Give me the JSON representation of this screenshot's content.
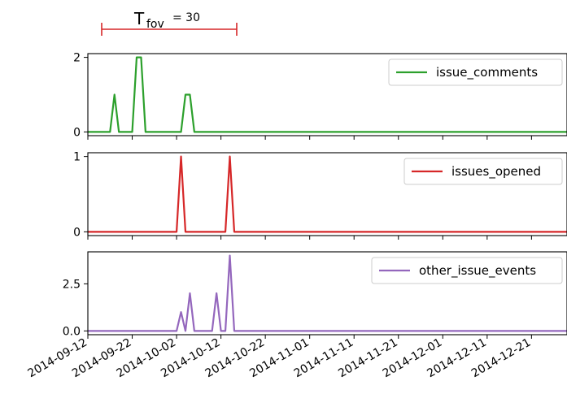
{
  "chart_data": {
    "type": "line",
    "fov_annotation": {
      "symbol": "T",
      "subscript": "fov",
      "value_text": "= 30",
      "color": "#d62728"
    },
    "x_dates": [
      "2014-09-12",
      "2014-09-13",
      "2014-09-14",
      "2014-09-15",
      "2014-09-16",
      "2014-09-17",
      "2014-09-18",
      "2014-09-19",
      "2014-09-20",
      "2014-09-21",
      "2014-09-22",
      "2014-09-23",
      "2014-09-24",
      "2014-09-25",
      "2014-09-26",
      "2014-09-27",
      "2014-09-28",
      "2014-09-29",
      "2014-09-30",
      "2014-10-01",
      "2014-10-02",
      "2014-10-03",
      "2014-10-04",
      "2014-10-05",
      "2014-10-06",
      "2014-10-07",
      "2014-10-08",
      "2014-10-09",
      "2014-10-10",
      "2014-10-11",
      "2014-10-12",
      "2014-10-13",
      "2014-10-14",
      "2014-10-15",
      "2014-10-16",
      "2014-10-17",
      "2014-10-18",
      "2014-10-19",
      "2014-10-20",
      "2014-10-21",
      "2014-10-22",
      "2014-10-23",
      "2014-10-24",
      "2014-10-25",
      "2014-10-26",
      "2014-10-27",
      "2014-10-28",
      "2014-10-29",
      "2014-10-30",
      "2014-10-31",
      "2014-11-01",
      "2014-11-02",
      "2014-11-03",
      "2014-11-04",
      "2014-11-05",
      "2014-11-06",
      "2014-11-07",
      "2014-11-08",
      "2014-11-09",
      "2014-11-10",
      "2014-11-11",
      "2014-11-12",
      "2014-11-13",
      "2014-11-14",
      "2014-11-15",
      "2014-11-16",
      "2014-11-17",
      "2014-11-18",
      "2014-11-19",
      "2014-11-20",
      "2014-11-21",
      "2014-11-22",
      "2014-11-23",
      "2014-11-24",
      "2014-11-25",
      "2014-11-26",
      "2014-11-27",
      "2014-11-28",
      "2014-11-29",
      "2014-11-30",
      "2014-12-01",
      "2014-12-02",
      "2014-12-03",
      "2014-12-04",
      "2014-12-05",
      "2014-12-06",
      "2014-12-07",
      "2014-12-08",
      "2014-12-09",
      "2014-12-10",
      "2014-12-11",
      "2014-12-12",
      "2014-12-13",
      "2014-12-14",
      "2014-12-15",
      "2014-12-16",
      "2014-12-17",
      "2014-12-18",
      "2014-12-19",
      "2014-12-20",
      "2014-12-21",
      "2014-12-22",
      "2014-12-23",
      "2014-12-24",
      "2014-12-25",
      "2014-12-26",
      "2014-12-27",
      "2014-12-28",
      "2014-12-29"
    ],
    "x_tick_labels": [
      "2014-09-12",
      "2014-09-22",
      "2014-10-02",
      "2014-10-12",
      "2014-10-22",
      "2014-11-01",
      "2014-11-11",
      "2014-11-21",
      "2014-12-01",
      "2014-12-11",
      "2014-12-21"
    ],
    "xlim": [
      "2014-09-12",
      "2014-12-29"
    ],
    "subplots": [
      {
        "series": [
          {
            "name": "issue_comments",
            "color": "#2ca02c",
            "values": [
              0,
              0,
              0,
              0,
              0,
              0,
              1,
              0,
              0,
              0,
              0,
              2,
              2,
              0,
              0,
              0,
              0,
              0,
              0,
              0,
              0,
              0,
              1,
              1,
              0,
              0,
              0,
              0,
              0,
              0,
              0,
              0,
              0,
              0,
              0,
              0,
              0,
              0,
              0,
              0,
              0,
              0,
              0,
              0,
              0,
              0,
              0,
              0,
              0,
              0,
              0,
              0,
              0,
              0,
              0,
              0,
              0,
              0,
              0,
              0,
              0,
              0,
              0,
              0,
              0,
              0,
              0,
              0,
              0,
              0,
              0,
              0,
              0,
              0,
              0,
              0,
              0,
              0,
              0,
              0,
              0,
              0,
              0,
              0,
              0,
              0,
              0,
              0,
              0,
              0,
              0,
              0,
              0,
              0,
              0,
              0,
              0,
              0,
              0,
              0,
              0,
              0,
              0,
              0,
              0,
              0,
              0,
              0,
              0
            ]
          }
        ],
        "ylim": [
          -0.1,
          2.1
        ],
        "y_ticks": [
          0,
          2
        ],
        "y_tick_labels": [
          "0",
          "2"
        ],
        "legend_position": "upper-right"
      },
      {
        "series": [
          {
            "name": "issues_opened",
            "color": "#d62728",
            "values": [
              0,
              0,
              0,
              0,
              0,
              0,
              0,
              0,
              0,
              0,
              0,
              0,
              0,
              0,
              0,
              0,
              0,
              0,
              0,
              0,
              0,
              1,
              0,
              0,
              0,
              0,
              0,
              0,
              0,
              0,
              0,
              0,
              1,
              0,
              0,
              0,
              0,
              0,
              0,
              0,
              0,
              0,
              0,
              0,
              0,
              0,
              0,
              0,
              0,
              0,
              0,
              0,
              0,
              0,
              0,
              0,
              0,
              0,
              0,
              0,
              0,
              0,
              0,
              0,
              0,
              0,
              0,
              0,
              0,
              0,
              0,
              0,
              0,
              0,
              0,
              0,
              0,
              0,
              0,
              0,
              0,
              0,
              0,
              0,
              0,
              0,
              0,
              0,
              0,
              0,
              0,
              0,
              0,
              0,
              0,
              0,
              0,
              0,
              0,
              0,
              0,
              0,
              0,
              0,
              0,
              0,
              0,
              0,
              0
            ]
          }
        ],
        "ylim": [
          -0.05,
          1.05
        ],
        "y_ticks": [
          0,
          1
        ],
        "y_tick_labels": [
          "0",
          "1"
        ],
        "legend_position": "upper-right"
      },
      {
        "series": [
          {
            "name": "other_issue_events",
            "color": "#9467bd",
            "values": [
              0,
              0,
              0,
              0,
              0,
              0,
              0,
              0,
              0,
              0,
              0,
              0,
              0,
              0,
              0,
              0,
              0,
              0,
              0,
              0,
              0,
              1,
              0,
              2,
              0,
              0,
              0,
              0,
              0,
              2,
              0,
              0,
              4,
              0,
              0,
              0,
              0,
              0,
              0,
              0,
              0,
              0,
              0,
              0,
              0,
              0,
              0,
              0,
              0,
              0,
              0,
              0,
              0,
              0,
              0,
              0,
              0,
              0,
              0,
              0,
              0,
              0,
              0,
              0,
              0,
              0,
              0,
              0,
              0,
              0,
              0,
              0,
              0,
              0,
              0,
              0,
              0,
              0,
              0,
              0,
              0,
              0,
              0,
              0,
              0,
              0,
              0,
              0,
              0,
              0,
              0,
              0,
              0,
              0,
              0,
              0,
              0,
              0,
              0,
              0,
              0,
              0,
              0,
              0,
              0,
              0,
              0,
              0,
              0
            ]
          }
        ],
        "ylim": [
          -0.2,
          4.2
        ],
        "y_ticks": [
          0,
          2.5
        ],
        "y_tick_labels": [
          "0.0",
          "2.5"
        ],
        "legend_position": "upper-right"
      }
    ]
  }
}
